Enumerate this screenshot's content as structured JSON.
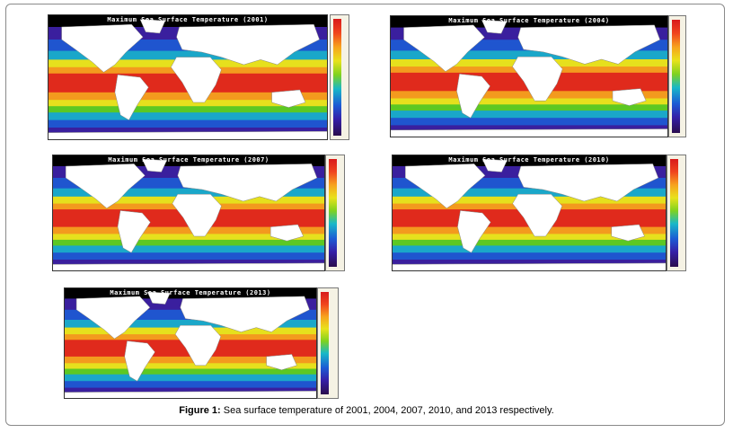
{
  "maps": [
    {
      "title": "Maximum Sea Surface Temperature (2001)",
      "year": "2001"
    },
    {
      "title": "Maximum Sea Surface Temperature (2004)",
      "year": "2004"
    },
    {
      "title": "Maximum Sea Surface Temperature (2007)",
      "year": "2007"
    },
    {
      "title": "Maximum Sea Surface Temperature (2010)",
      "year": "2010"
    },
    {
      "title": "Maximum Sea Surface Temperature (2013)",
      "year": "2013"
    }
  ],
  "colors": {
    "warm": "#e02a1c",
    "orange": "#f39a1e",
    "yellow": "#e6e01d",
    "green": "#5cc823",
    "cyan": "#1aa7c9",
    "blue": "#1f55cf",
    "indigo": "#3a1f9e",
    "cold": "#2a0c47",
    "land": "#ffffff",
    "polar": "#000000"
  },
  "caption": {
    "label": "Figure 1:",
    "text": "Sea surface temperature of 2001, 2004, 2007, 2010, and 2013 respectively."
  }
}
